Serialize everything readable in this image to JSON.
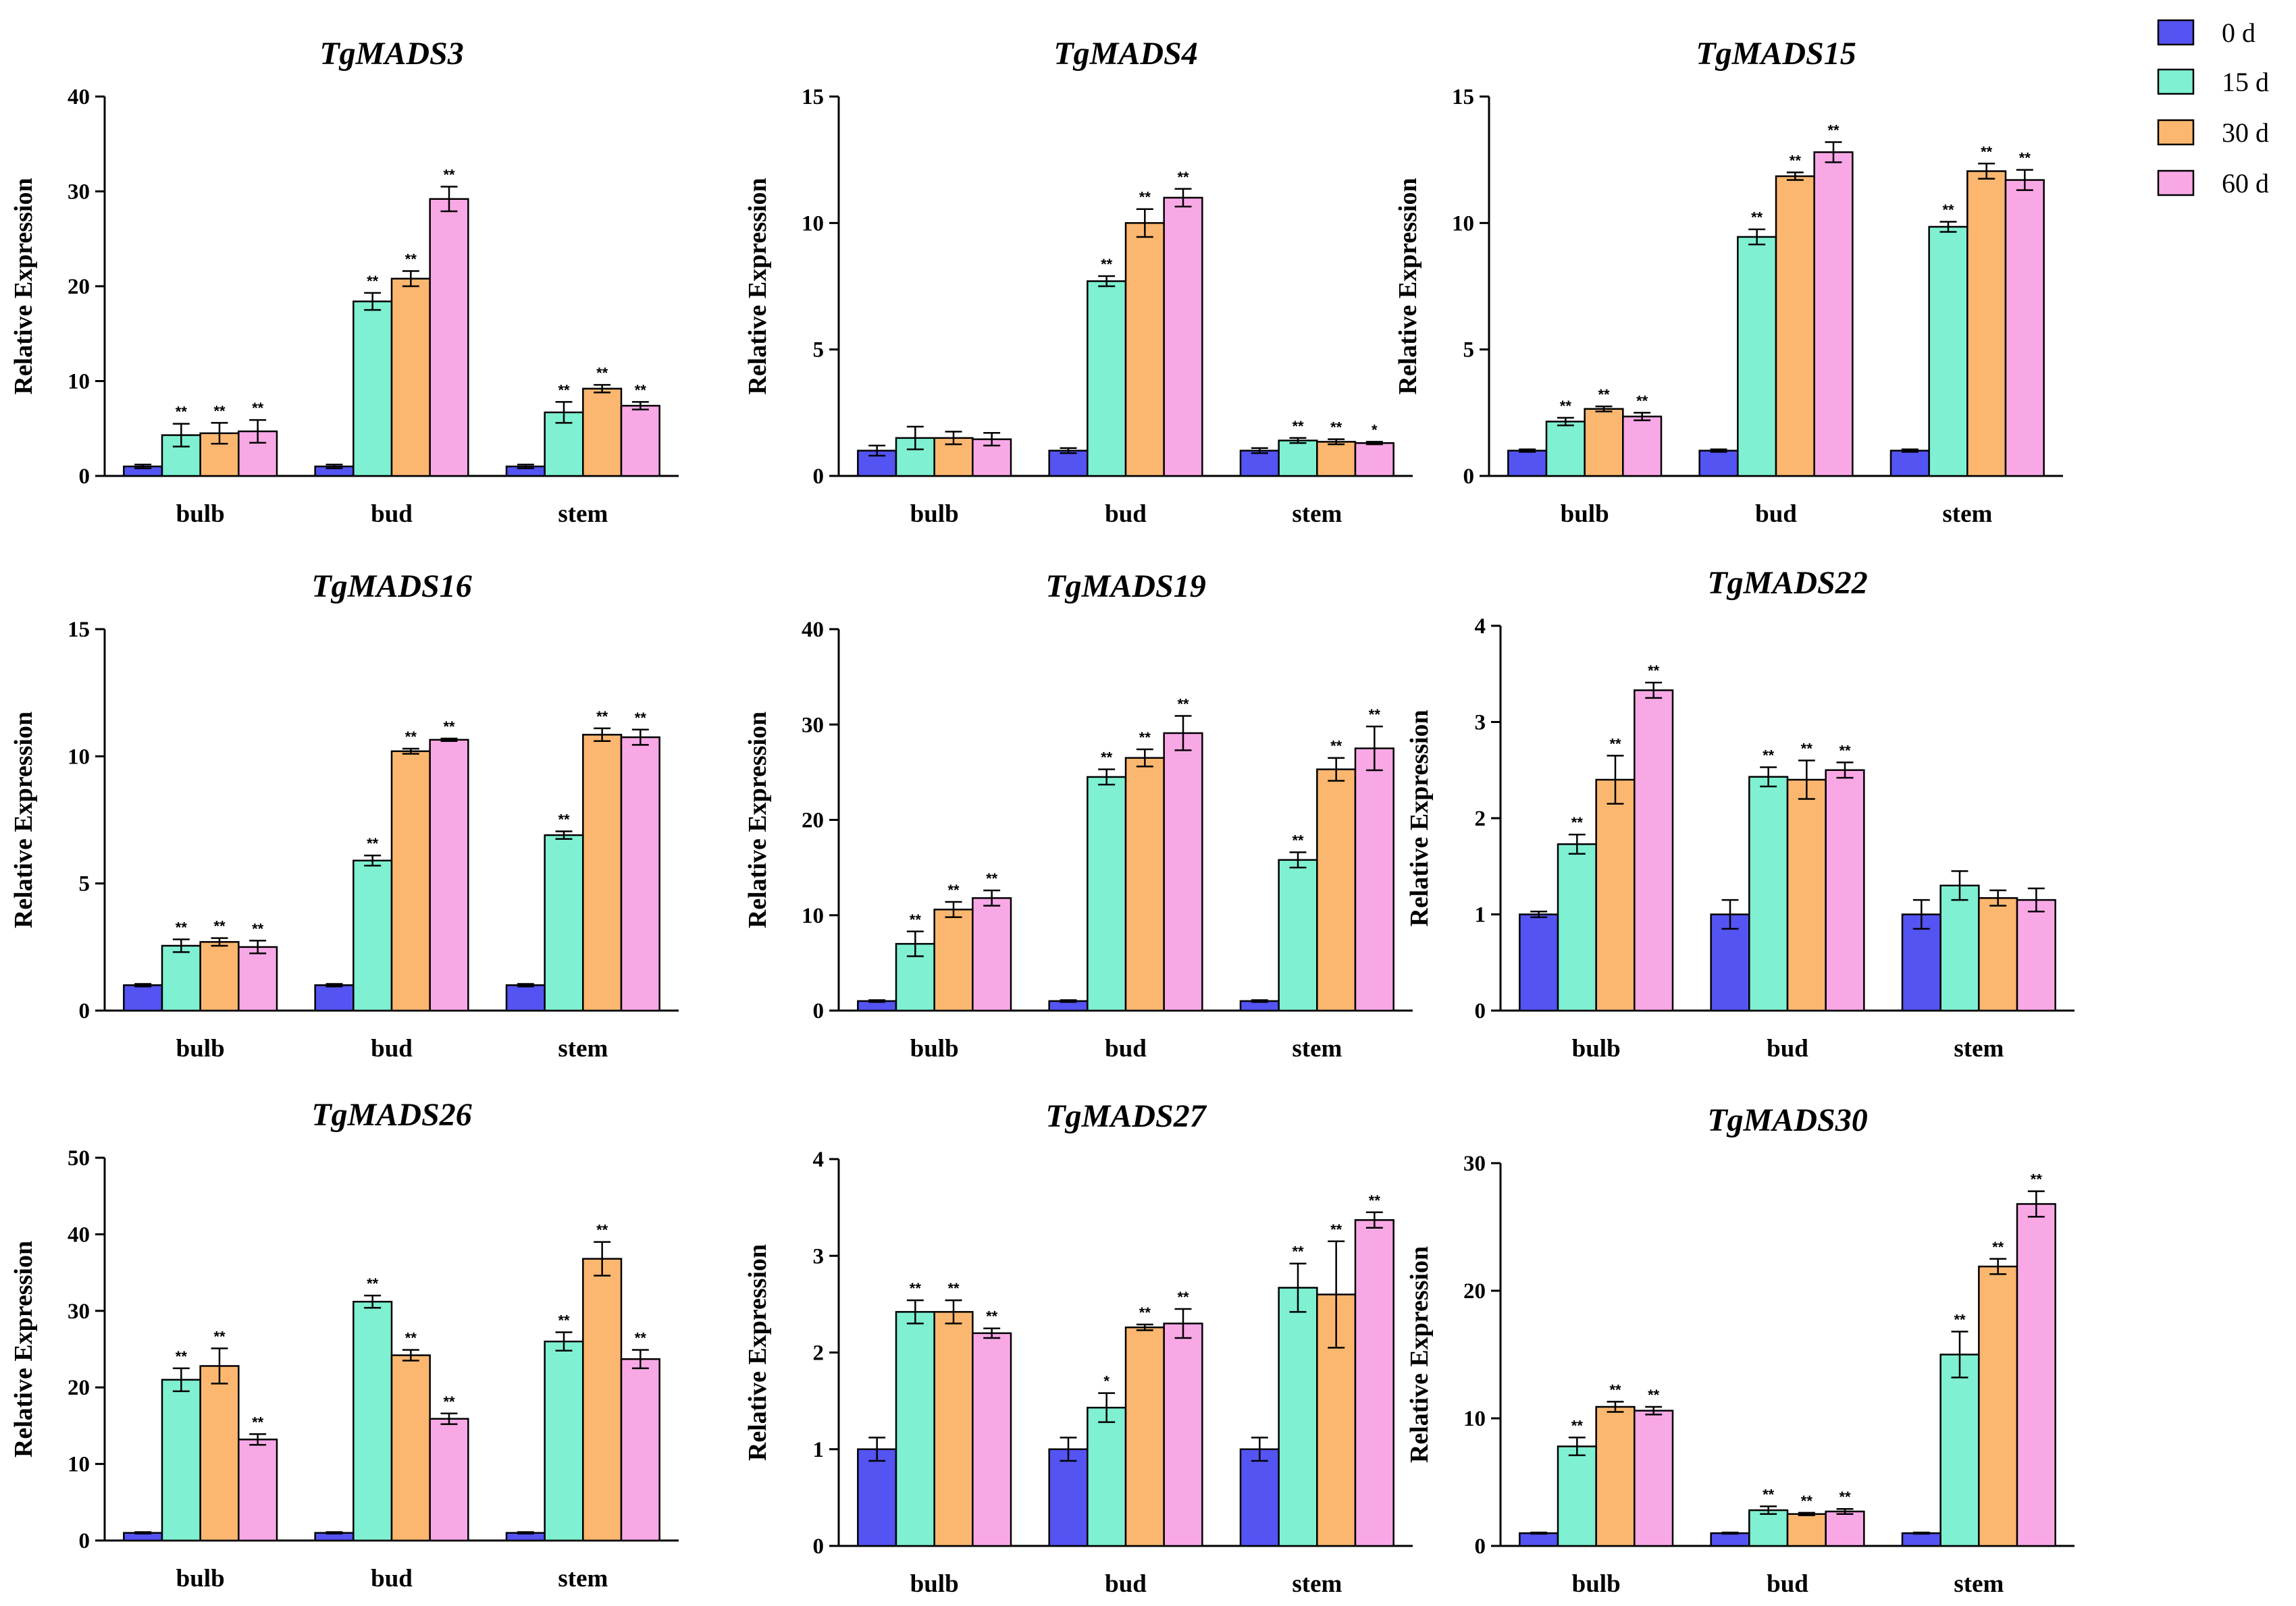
{
  "chart_data": [
    {
      "type": "bar",
      "title": "TgMADS3",
      "ylabel": "Relative Expression",
      "ylim": [
        0,
        40
      ],
      "yticks": [
        "0",
        "10",
        "20",
        "30",
        "40"
      ],
      "categories": [
        "bulb",
        "bud",
        "stem"
      ],
      "series": [
        {
          "name": "0 d",
          "values": [
            1,
            1,
            1
          ],
          "errors": [
            0.2,
            0.2,
            0.2
          ],
          "sig": [
            "",
            "",
            ""
          ]
        },
        {
          "name": "15 d",
          "values": [
            4.3,
            18.4,
            6.7
          ],
          "errors": [
            1.2,
            0.9,
            1.1
          ],
          "sig": [
            "**",
            "**",
            "**"
          ]
        },
        {
          "name": "30 d",
          "values": [
            4.5,
            20.8,
            9.2
          ],
          "errors": [
            1.1,
            0.8,
            0.4
          ],
          "sig": [
            "**",
            "**",
            "**"
          ]
        },
        {
          "name": "60 d",
          "values": [
            4.7,
            29.2,
            7.4
          ],
          "errors": [
            1.2,
            1.3,
            0.4
          ],
          "sig": [
            "**",
            "**",
            "**"
          ]
        }
      ]
    },
    {
      "type": "bar",
      "title": "TgMADS4",
      "ylabel": "Relative Expression",
      "ylim": [
        0,
        15
      ],
      "yticks": [
        "0",
        "5",
        "10",
        "15"
      ],
      "categories": [
        "bulb",
        "bud",
        "stem"
      ],
      "series": [
        {
          "name": "0 d",
          "values": [
            1.0,
            1.0,
            1.0
          ],
          "errors": [
            0.2,
            0.1,
            0.1
          ],
          "sig": [
            "",
            "",
            ""
          ]
        },
        {
          "name": "15 d",
          "values": [
            1.5,
            7.7,
            1.4
          ],
          "errors": [
            0.45,
            0.2,
            0.1
          ],
          "sig": [
            "",
            "**",
            "**"
          ]
        },
        {
          "name": "30 d",
          "values": [
            1.5,
            10.0,
            1.35
          ],
          "errors": [
            0.25,
            0.55,
            0.1
          ],
          "sig": [
            "",
            "**",
            "**"
          ]
        },
        {
          "name": "60 d",
          "values": [
            1.45,
            11.0,
            1.3
          ],
          "errors": [
            0.25,
            0.35,
            0.05
          ],
          "sig": [
            "",
            "**",
            "*"
          ]
        }
      ]
    },
    {
      "type": "bar",
      "title": "TgMADS15",
      "ylabel": "Relative Expression",
      "ylim": [
        0,
        15
      ],
      "yticks": [
        "0",
        "5",
        "10",
        "15"
      ],
      "categories": [
        "bulb",
        "bud",
        "stem"
      ],
      "series": [
        {
          "name": "0 d",
          "values": [
            1.0,
            1.0,
            1.0
          ],
          "errors": [
            0.05,
            0.05,
            0.05
          ],
          "sig": [
            "",
            "",
            ""
          ]
        },
        {
          "name": "15 d",
          "values": [
            2.15,
            9.45,
            9.85
          ],
          "errors": [
            0.15,
            0.3,
            0.2
          ],
          "sig": [
            "**",
            "**",
            "**"
          ]
        },
        {
          "name": "30 d",
          "values": [
            2.65,
            11.85,
            12.05
          ],
          "errors": [
            0.1,
            0.15,
            0.3
          ],
          "sig": [
            "**",
            "**",
            "**"
          ]
        },
        {
          "name": "60 d",
          "values": [
            2.35,
            12.8,
            11.7
          ],
          "errors": [
            0.15,
            0.4,
            0.4
          ],
          "sig": [
            "**",
            "**",
            "**"
          ]
        }
      ]
    },
    {
      "type": "bar",
      "title": "TgMADS16",
      "ylabel": "Relative Expression",
      "ylim": [
        0,
        15
      ],
      "yticks": [
        "0",
        "5",
        "10",
        "15"
      ],
      "categories": [
        "bulb",
        "bud",
        "stem"
      ],
      "series": [
        {
          "name": "0 d",
          "values": [
            1.0,
            1.0,
            1.0
          ],
          "errors": [
            0.05,
            0.05,
            0.05
          ],
          "sig": [
            "",
            "",
            ""
          ]
        },
        {
          "name": "15 d",
          "values": [
            2.55,
            5.9,
            6.9
          ],
          "errors": [
            0.25,
            0.2,
            0.15
          ],
          "sig": [
            "**",
            "**",
            "**"
          ]
        },
        {
          "name": "30 d",
          "values": [
            2.7,
            10.2,
            10.85
          ],
          "errors": [
            0.15,
            0.1,
            0.25
          ],
          "sig": [
            "**",
            "**",
            "**"
          ]
        },
        {
          "name": "60 d",
          "values": [
            2.5,
            10.65,
            10.75
          ],
          "errors": [
            0.25,
            0.05,
            0.3
          ],
          "sig": [
            "**",
            "**",
            "**"
          ]
        }
      ]
    },
    {
      "type": "bar",
      "title": "TgMADS19",
      "ylabel": "Relative Expression",
      "ylim": [
        0,
        40
      ],
      "yticks": [
        "0",
        "10",
        "20",
        "30",
        "40"
      ],
      "categories": [
        "bulb",
        "bud",
        "stem"
      ],
      "series": [
        {
          "name": "0 d",
          "values": [
            1,
            1,
            1
          ],
          "errors": [
            0.1,
            0.1,
            0.1
          ],
          "sig": [
            "",
            "",
            ""
          ]
        },
        {
          "name": "15 d",
          "values": [
            7.0,
            24.5,
            15.8
          ],
          "errors": [
            1.3,
            0.8,
            0.8
          ],
          "sig": [
            "**",
            "**",
            "**"
          ]
        },
        {
          "name": "30 d",
          "values": [
            10.6,
            26.5,
            25.3
          ],
          "errors": [
            0.8,
            0.9,
            1.2
          ],
          "sig": [
            "**",
            "**",
            "**"
          ]
        },
        {
          "name": "60 d",
          "values": [
            11.8,
            29.1,
            27.5
          ],
          "errors": [
            0.8,
            1.8,
            2.3
          ],
          "sig": [
            "**",
            "**",
            "**"
          ]
        }
      ]
    },
    {
      "type": "bar",
      "title": "TgMADS22",
      "ylabel": "Relative Expression",
      "ylim": [
        0,
        4
      ],
      "yticks": [
        "0",
        "1",
        "2",
        "3",
        "4"
      ],
      "categories": [
        "bulb",
        "bud",
        "stem"
      ],
      "series": [
        {
          "name": "0 d",
          "values": [
            1.0,
            1.0,
            1.0
          ],
          "errors": [
            0.03,
            0.15,
            0.15
          ],
          "sig": [
            "",
            "",
            ""
          ]
        },
        {
          "name": "15 d",
          "values": [
            1.73,
            2.43,
            1.3
          ],
          "errors": [
            0.1,
            0.1,
            0.15
          ],
          "sig": [
            "**",
            "**",
            ""
          ]
        },
        {
          "name": "30 d",
          "values": [
            2.4,
            2.4,
            1.17
          ],
          "errors": [
            0.25,
            0.2,
            0.08
          ],
          "sig": [
            "**",
            "**",
            ""
          ]
        },
        {
          "name": "60 d",
          "values": [
            3.33,
            2.5,
            1.15
          ],
          "errors": [
            0.08,
            0.08,
            0.12
          ],
          "sig": [
            "**",
            "**",
            ""
          ]
        }
      ]
    },
    {
      "type": "bar",
      "title": "TgMADS26",
      "ylabel": "Relative Expression",
      "ylim": [
        0,
        50
      ],
      "yticks": [
        "0",
        "10",
        "20",
        "30",
        "40",
        "50"
      ],
      "categories": [
        "bulb",
        "bud",
        "stem"
      ],
      "series": [
        {
          "name": "0 d",
          "values": [
            1,
            1,
            1
          ],
          "errors": [
            0.1,
            0.1,
            0.1
          ],
          "sig": [
            "",
            "",
            ""
          ]
        },
        {
          "name": "15 d",
          "values": [
            21.0,
            31.2,
            26.0
          ],
          "errors": [
            1.5,
            0.8,
            1.2
          ],
          "sig": [
            "**",
            "**",
            "**"
          ]
        },
        {
          "name": "30 d",
          "values": [
            22.8,
            24.2,
            36.8
          ],
          "errors": [
            2.3,
            0.7,
            2.2
          ],
          "sig": [
            "**",
            "**",
            "**"
          ]
        },
        {
          "name": "60 d",
          "values": [
            13.2,
            15.9,
            23.7
          ],
          "errors": [
            0.7,
            0.7,
            1.2
          ],
          "sig": [
            "**",
            "**",
            "**"
          ]
        }
      ]
    },
    {
      "type": "bar",
      "title": "TgMADS27",
      "ylabel": "Relative Expression",
      "ylim": [
        0,
        4
      ],
      "yticks": [
        "0",
        "1",
        "2",
        "3",
        "4"
      ],
      "categories": [
        "bulb",
        "bud",
        "stem"
      ],
      "series": [
        {
          "name": "0 d",
          "values": [
            1.0,
            1.0,
            1.0
          ],
          "errors": [
            0.12,
            0.12,
            0.12
          ],
          "sig": [
            "",
            "",
            ""
          ]
        },
        {
          "name": "15 d",
          "values": [
            2.42,
            1.43,
            2.67
          ],
          "errors": [
            0.12,
            0.15,
            0.25
          ],
          "sig": [
            "**",
            "*",
            "**"
          ]
        },
        {
          "name": "30 d",
          "values": [
            2.42,
            2.26,
            2.6
          ],
          "errors": [
            0.12,
            0.03,
            0.55
          ],
          "sig": [
            "**",
            "**",
            "**"
          ]
        },
        {
          "name": "60 d",
          "values": [
            2.2,
            2.3,
            3.37
          ],
          "errors": [
            0.05,
            0.15,
            0.08
          ],
          "sig": [
            "**",
            "**",
            "**"
          ]
        }
      ]
    },
    {
      "type": "bar",
      "title": "TgMADS30",
      "ylabel": "Relative Expression",
      "ylim": [
        0,
        30
      ],
      "yticks": [
        "0",
        "10",
        "20",
        "30"
      ],
      "categories": [
        "bulb",
        "bud",
        "stem"
      ],
      "series": [
        {
          "name": "0 d",
          "values": [
            1.0,
            1.0,
            1.0
          ],
          "errors": [
            0.05,
            0.05,
            0.05
          ],
          "sig": [
            "",
            "",
            ""
          ]
        },
        {
          "name": "15 d",
          "values": [
            7.8,
            2.8,
            15.0
          ],
          "errors": [
            0.7,
            0.3,
            1.8
          ],
          "sig": [
            "**",
            "**",
            "**"
          ]
        },
        {
          "name": "30 d",
          "values": [
            10.9,
            2.5,
            21.9
          ],
          "errors": [
            0.4,
            0.1,
            0.6
          ],
          "sig": [
            "**",
            "**",
            "**"
          ]
        },
        {
          "name": "60 d",
          "values": [
            10.6,
            2.7,
            26.8
          ],
          "errors": [
            0.3,
            0.2,
            1.0
          ],
          "sig": [
            "**",
            "**",
            "**"
          ]
        }
      ]
    }
  ],
  "legend": {
    "position": "top-right",
    "items": [
      {
        "label": "0 d",
        "color": "#5454f2"
      },
      {
        "label": "15 d",
        "color": "#7ff0d2"
      },
      {
        "label": "30 d",
        "color": "#fbb770"
      },
      {
        "label": "60 d",
        "color": "#f9a8e6"
      }
    ]
  }
}
